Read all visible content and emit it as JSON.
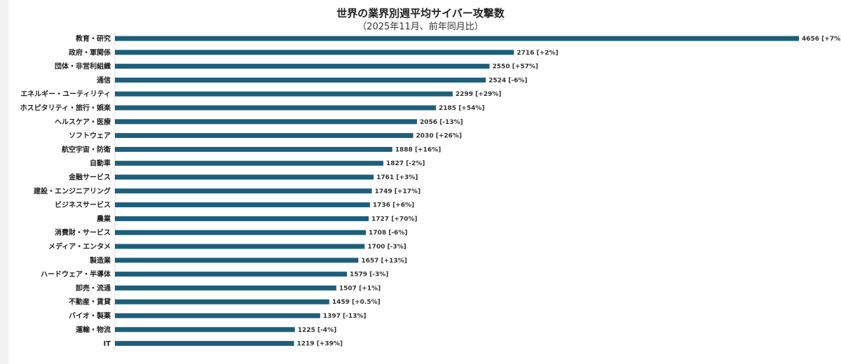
{
  "chart_data": {
    "type": "bar",
    "orientation": "horizontal",
    "title": "世界の業界別週平均サイバー攻撃数",
    "subtitle": "（2025年11月、前年同月比）",
    "bar_color": "#1d5f7b",
    "categories": [
      "教育・研究",
      "政府・軍関係",
      "団体・非営利組織",
      "通信",
      "エネルギー・ユーティリティ",
      "ホスピタリティ・旅行・娯楽",
      "ヘルスケア・医療",
      "ソフトウェア",
      "航空宇宙・防衛",
      "自動車",
      "金融サービス",
      "建設・エンジニアリング",
      "ビジネスサービス",
      "農業",
      "消費財・サービス",
      "メディア・エンタメ",
      "製造業",
      "ハードウェア・半導体",
      "卸売・流通",
      "不動産・賃貸",
      "バイオ・製薬",
      "運輸・物流",
      "IT"
    ],
    "values": [
      4656,
      2716,
      2550,
      2524,
      2299,
      2185,
      2056,
      2030,
      1888,
      1827,
      1761,
      1749,
      1736,
      1727,
      1708,
      1700,
      1657,
      1579,
      1507,
      1459,
      1397,
      1225,
      1219
    ],
    "changes": [
      "+7%",
      "+2%",
      "+57%",
      "-6%",
      "+29%",
      "+54%",
      "-13%",
      "+26%",
      "+16%",
      "-2%",
      "+3%",
      "+17%",
      "+6%",
      "+70%",
      "-6%",
      "-3%",
      "+13%",
      "-3%",
      "+1%",
      "+0.5%",
      "-13%",
      "-4%",
      "+39%"
    ],
    "xlim": [
      0,
      4656
    ],
    "grid": false,
    "legend": "none"
  }
}
